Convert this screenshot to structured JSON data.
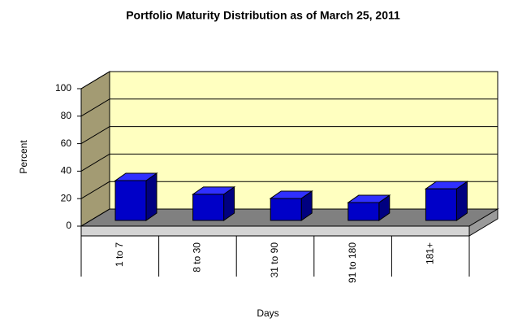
{
  "chart_data": {
    "type": "bar",
    "title": "Portfolio Maturity Distribution as of March 25, 2011",
    "xlabel": "Days",
    "ylabel": "Percent",
    "categories": [
      "1 to 7",
      "8 to 30",
      "31 to 90",
      "91 to 180",
      "181+"
    ],
    "values": [
      29,
      19,
      16,
      13,
      23
    ],
    "color": "#0000c8",
    "ylim": [
      0,
      100
    ],
    "yticks": [
      0,
      20,
      40,
      60,
      80,
      100
    ],
    "grid": true
  }
}
